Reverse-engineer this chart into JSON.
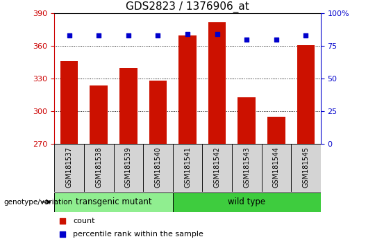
{
  "title": "GDS2823 / 1376906_at",
  "samples": [
    "GSM181537",
    "GSM181538",
    "GSM181539",
    "GSM181540",
    "GSM181541",
    "GSM181542",
    "GSM181543",
    "GSM181544",
    "GSM181545"
  ],
  "counts": [
    346,
    324,
    340,
    328,
    370,
    382,
    313,
    295,
    361
  ],
  "percentile_ranks": [
    83,
    83,
    83,
    83,
    84,
    84,
    80,
    80,
    83
  ],
  "groups": [
    {
      "label": "transgenic mutant",
      "start": 0,
      "end": 4,
      "color": "#90EE90"
    },
    {
      "label": "wild type",
      "start": 4,
      "end": 9,
      "color": "#3ECC3E"
    }
  ],
  "ymin": 270,
  "ymax": 390,
  "yticks": [
    270,
    300,
    330,
    360,
    390
  ],
  "y2min": 0,
  "y2max": 100,
  "y2ticks": [
    0,
    25,
    50,
    75,
    100
  ],
  "bar_color": "#CC1100",
  "dot_color": "#0000CC",
  "bar_width": 0.6,
  "title_fontsize": 11,
  "tick_fontsize": 8,
  "label_fontsize": 8,
  "genotype_label": "genotype/variation",
  "legend_count": "count",
  "legend_percentile": "percentile rank within the sample",
  "tick_color_left": "#CC0000",
  "tick_color_right": "#0000CC",
  "sample_box_color": "#D4D4D4",
  "plot_bg": "#ffffff"
}
